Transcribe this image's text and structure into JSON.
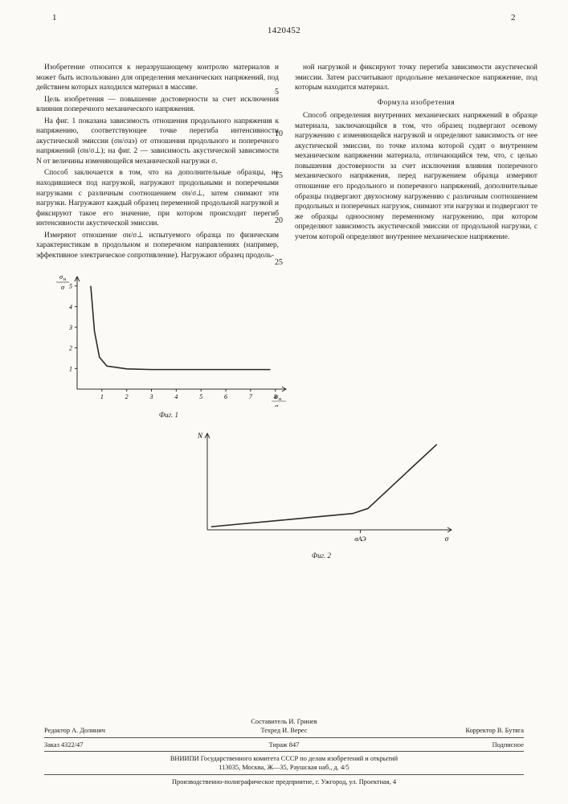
{
  "header": {
    "page_left": "1",
    "page_right": "2",
    "doc_number": "1420452"
  },
  "margin_nums": [
    "5",
    "10",
    "15",
    "20",
    "25"
  ],
  "left_col": {
    "p1": "Изобретение относится к неразрушающему контролю материалов и может быть использовано для определения механических напряжений, под действием которых находился материал в массиве.",
    "p2": "Цель изобретения — повышение достоверности за счет исключения влияния поперечного механического напряжения.",
    "p3": "На фиг. 1 показана зависимость отношения продольного напряжения к напряжению, соответствующее точке перегиба интенсивности акустической эмиссии (σн/σаэ) от отношения продольного и поперечного напряжений (σн/σ⊥); на фиг. 2 — зависимость акустической зависимости N от величины изменяющейся механической нагрузки σ.",
    "p4": "Способ заключается в том, что на дополнительные образцы, не находившиеся под нагрузкой, нагружают продольными и поперечными нагрузками с различным соотношением σн/σ⊥, затем снимают эти нагрузки. Нагружают каждый образец переменной продольной нагрузкой и фиксируют такое его значение, при котором происходит перегиб интенсивности акустической эмиссии.",
    "p5": "Измеряют отношение σн/σ⊥ испытуемого образца по физическим характеристикам в продольном и поперечном направлениях (например, эффективное электрическое сопротивление). Нагружают образец продоль-"
  },
  "right_col": {
    "p1": "ной нагрузкой и фиксируют точку перегиба зависимости акустической эмиссии. Затем рассчитывают продольное механическое напряжение, под которым находится материал.",
    "formula_title": "Формула изобретения",
    "p2": "Способ определения внутренних механических напряжений в образце материала, заключающийся в том, что образец подвергают осевому нагружению с изменяющейся нагрузкой и определяют зависимость от нее акустической эмиссии, по точке излома которой судят о внутреннем механическом напряжении материала, отличающийся тем, что, с целью повышения достоверности за счет исключения влияния поперечного механического напряжения, перед нагружением образца измеряют отношение его продольного и поперечного напряжений, дополнительные образцы подвергают двухосному нагружению с различным соотношением продольных и поперечных нагрузок, снимают эти нагрузки и подвергают те же образцы одноосному переменному нагружению, при котором определяют зависимость акустической эмиссии от продольной нагрузки, с учетом которой определяют внутреннее механическое напряжение."
  },
  "fig1": {
    "type": "line",
    "ylabel": "σн/σ",
    "xlabel": "σн/σ⊥",
    "caption": "Фиг. 1",
    "x_ticks": [
      1,
      2,
      3,
      4,
      5,
      6,
      7,
      8
    ],
    "y_ticks": [
      1,
      2,
      3,
      4,
      5
    ],
    "points": [
      [
        0.55,
        5.0
      ],
      [
        0.7,
        2.8
      ],
      [
        0.9,
        1.55
      ],
      [
        1.2,
        1.12
      ],
      [
        2,
        0.98
      ],
      [
        3,
        0.95
      ],
      [
        4,
        0.95
      ],
      [
        5,
        0.95
      ],
      [
        6,
        0.95
      ],
      [
        7,
        0.95
      ],
      [
        7.8,
        0.95
      ]
    ],
    "xlim": [
      0,
      8.3
    ],
    "ylim": [
      0,
      5.3
    ],
    "stroke_color": "#2a2a2a",
    "stroke_width": 1.6,
    "axis_color": "#2a2a2a",
    "tick_fontsize": 8
  },
  "fig2": {
    "type": "line",
    "ylabel": "N",
    "xlabel": "σ",
    "caption": "Фиг. 2",
    "points": [
      [
        0.1,
        0.08
      ],
      [
        3.8,
        0.42
      ],
      [
        4.2,
        0.55
      ],
      [
        6.0,
        2.2
      ]
    ],
    "x_break_label": "σАЭ",
    "xlim": [
      0,
      6.3
    ],
    "ylim": [
      0,
      2.4
    ],
    "stroke_color": "#2a2a2a",
    "stroke_width": 1.6,
    "axis_color": "#2a2a2a"
  },
  "footer": {
    "compiler": "Составитель И. Гринев",
    "editor": "Редактор А. Долинич",
    "techred": "Техред И. Верес",
    "corrector": "Корректор В. Бутяга",
    "order": "Заказ 4322/47",
    "tirazh": "Тираж 847",
    "podpis": "Подписное",
    "org1": "ВНИИПИ Государственного комитета СССР по делам изобретений и открытий",
    "org2": "113035, Москва, Ж—35, Раушская наб., д. 4/5",
    "print": "Производственно-полиграфическое предприятие, г. Ужгород, ул. Проектная, 4"
  }
}
